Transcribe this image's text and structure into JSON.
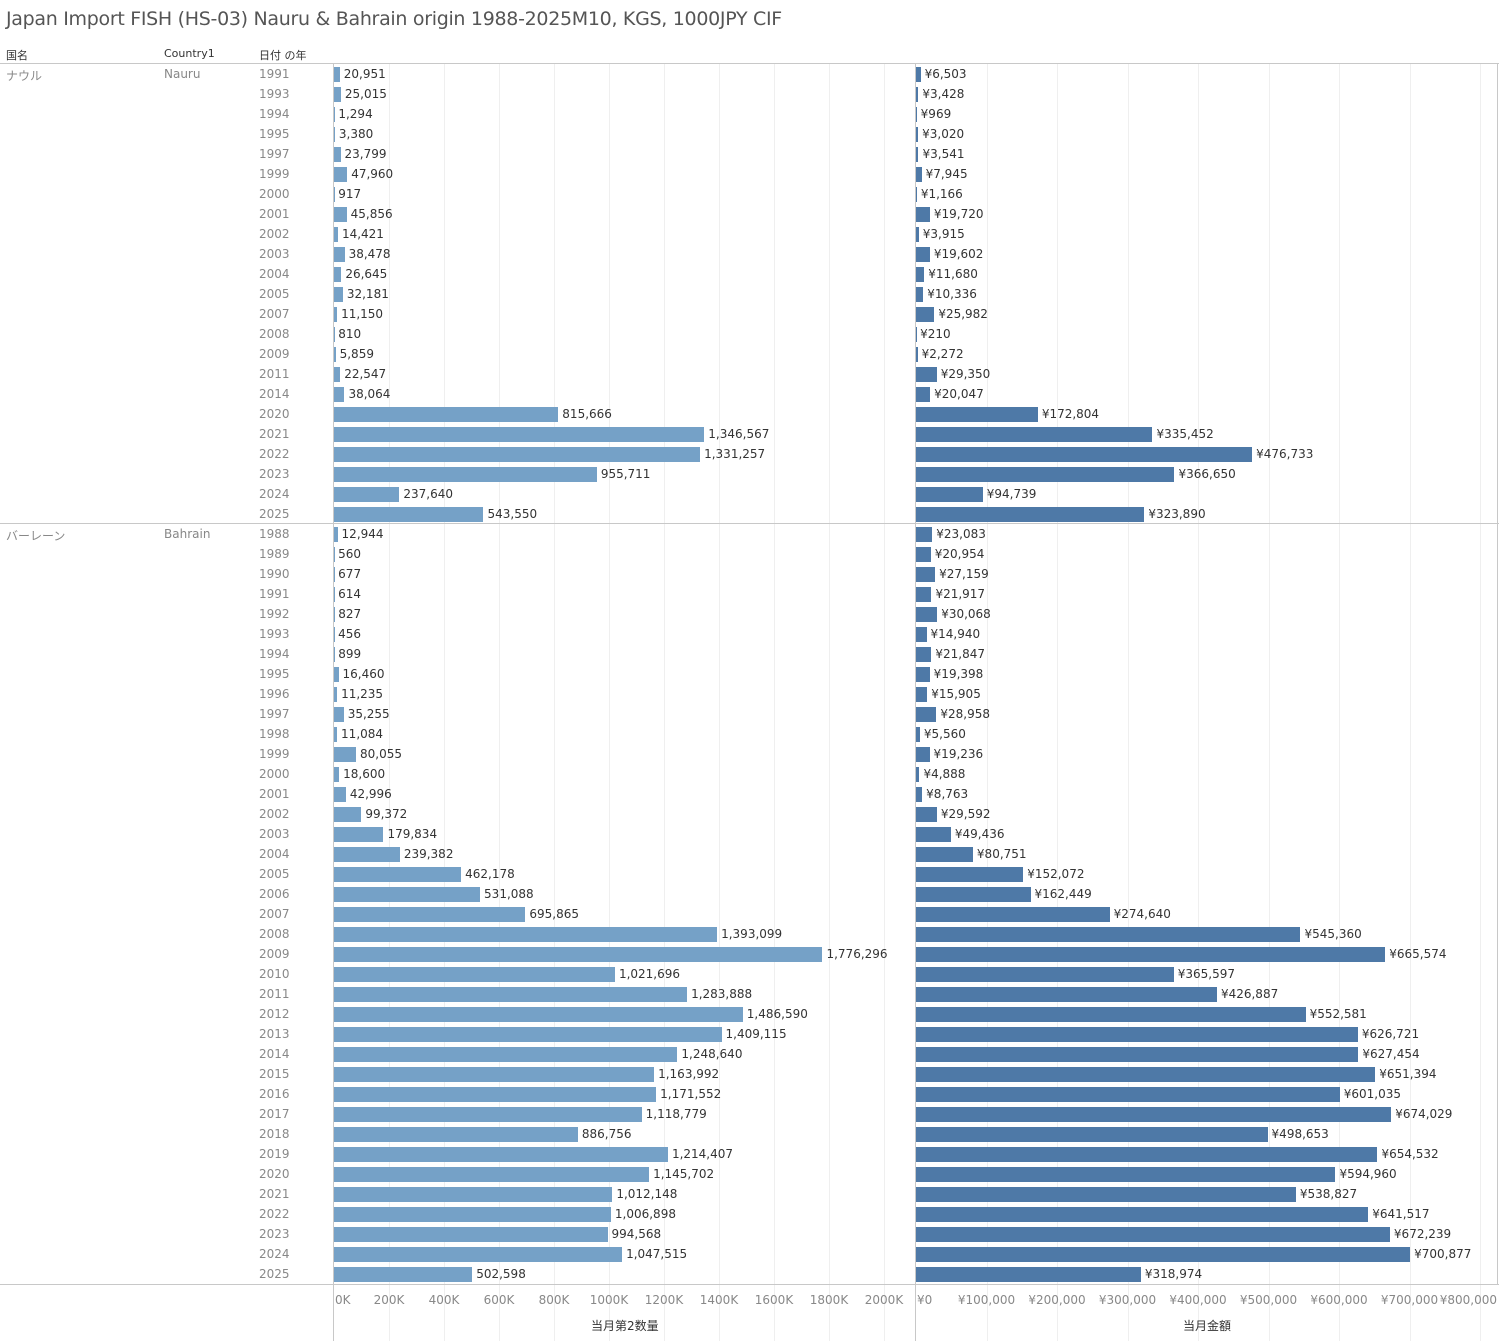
{
  "title": "Japan Import FISH (HS-03) Nauru & Bahrain origin 1988-2025M10, KGS, 1000JPY CIF",
  "headers": {
    "col1": "国名",
    "col2": "Country1",
    "col3": "日付 の年"
  },
  "colors": {
    "quantity_bar": "#75a1c7",
    "amount_bar": "#4e79a7"
  },
  "chart_data": {
    "type": "bar",
    "orientation": "horizontal",
    "title": "Japan Import FISH (HS-03) Nauru & Bahrain origin 1988-2025M10, KGS, 1000JPY CIF",
    "panels": [
      {
        "measure": "当月第2数量",
        "xlabel": "当月第2数量",
        "xlim": [
          0,
          2100000
        ],
        "ticks": [
          "0K",
          "200K",
          "400K",
          "600K",
          "800K",
          "1000K",
          "1200K",
          "1400K",
          "1600K",
          "1800K",
          "2000K"
        ],
        "tick_values": [
          0,
          200000,
          400000,
          600000,
          800000,
          1000000,
          1200000,
          1400000,
          1600000,
          1800000,
          2000000
        ]
      },
      {
        "measure": "当月金額",
        "xlabel": "当月金額",
        "xlim": [
          0,
          826000
        ],
        "ticks": [
          "¥0",
          "¥100,000",
          "¥200,000",
          "¥300,000",
          "¥400,000",
          "¥500,000",
          "¥600,000",
          "¥700,000",
          "¥800,000"
        ],
        "tick_values": [
          0,
          100000,
          200000,
          300000,
          400000,
          500000,
          600000,
          700000,
          800000
        ]
      }
    ],
    "groups": [
      {
        "name_jp": "ナウル",
        "name_en": "Nauru",
        "rows": [
          {
            "year": "1991",
            "qty": 20951,
            "amt": 6503
          },
          {
            "year": "1993",
            "qty": 25015,
            "amt": 3428
          },
          {
            "year": "1994",
            "qty": 1294,
            "amt": 969
          },
          {
            "year": "1995",
            "qty": 3380,
            "amt": 3020
          },
          {
            "year": "1997",
            "qty": 23799,
            "amt": 3541
          },
          {
            "year": "1999",
            "qty": 47960,
            "amt": 7945
          },
          {
            "year": "2000",
            "qty": 917,
            "amt": 1166
          },
          {
            "year": "2001",
            "qty": 45856,
            "amt": 19720
          },
          {
            "year": "2002",
            "qty": 14421,
            "amt": 3915
          },
          {
            "year": "2003",
            "qty": 38478,
            "amt": 19602
          },
          {
            "year": "2004",
            "qty": 26645,
            "amt": 11680
          },
          {
            "year": "2005",
            "qty": 32181,
            "amt": 10336
          },
          {
            "year": "2007",
            "qty": 11150,
            "amt": 25982
          },
          {
            "year": "2008",
            "qty": 810,
            "amt": 210
          },
          {
            "year": "2009",
            "qty": 5859,
            "amt": 2272
          },
          {
            "year": "2011",
            "qty": 22547,
            "amt": 29350
          },
          {
            "year": "2014",
            "qty": 38064,
            "amt": 20047
          },
          {
            "year": "2020",
            "qty": 815666,
            "amt": 172804
          },
          {
            "year": "2021",
            "qty": 1346567,
            "amt": 335452
          },
          {
            "year": "2022",
            "qty": 1331257,
            "amt": 476733
          },
          {
            "year": "2023",
            "qty": 955711,
            "amt": 366650
          },
          {
            "year": "2024",
            "qty": 237640,
            "amt": 94739
          },
          {
            "year": "2025",
            "qty": 543550,
            "amt": 323890
          }
        ]
      },
      {
        "name_jp": "バーレーン",
        "name_en": "Bahrain",
        "rows": [
          {
            "year": "1988",
            "qty": 12944,
            "amt": 23083
          },
          {
            "year": "1989",
            "qty": 560,
            "amt": 20954
          },
          {
            "year": "1990",
            "qty": 677,
            "amt": 27159
          },
          {
            "year": "1991",
            "qty": 614,
            "amt": 21917
          },
          {
            "year": "1992",
            "qty": 827,
            "amt": 30068
          },
          {
            "year": "1993",
            "qty": 456,
            "amt": 14940
          },
          {
            "year": "1994",
            "qty": 899,
            "amt": 21847
          },
          {
            "year": "1995",
            "qty": 16460,
            "amt": 19398
          },
          {
            "year": "1996",
            "qty": 11235,
            "amt": 15905
          },
          {
            "year": "1997",
            "qty": 35255,
            "amt": 28958
          },
          {
            "year": "1998",
            "qty": 11084,
            "amt": 5560
          },
          {
            "year": "1999",
            "qty": 80055,
            "amt": 19236
          },
          {
            "year": "2000",
            "qty": 18600,
            "amt": 4888
          },
          {
            "year": "2001",
            "qty": 42996,
            "amt": 8763
          },
          {
            "year": "2002",
            "qty": 99372,
            "amt": 29592
          },
          {
            "year": "2003",
            "qty": 179834,
            "amt": 49436
          },
          {
            "year": "2004",
            "qty": 239382,
            "amt": 80751
          },
          {
            "year": "2005",
            "qty": 462178,
            "amt": 152072
          },
          {
            "year": "2006",
            "qty": 531088,
            "amt": 162449
          },
          {
            "year": "2007",
            "qty": 695865,
            "amt": 274640
          },
          {
            "year": "2008",
            "qty": 1393099,
            "amt": 545360
          },
          {
            "year": "2009",
            "qty": 1776296,
            "amt": 665574
          },
          {
            "year": "2010",
            "qty": 1021696,
            "amt": 365597
          },
          {
            "year": "2011",
            "qty": 1283888,
            "amt": 426887
          },
          {
            "year": "2012",
            "qty": 1486590,
            "amt": 552581
          },
          {
            "year": "2013",
            "qty": 1409115,
            "amt": 626721
          },
          {
            "year": "2014",
            "qty": 1248640,
            "amt": 627454
          },
          {
            "year": "2015",
            "qty": 1163992,
            "amt": 651394
          },
          {
            "year": "2016",
            "qty": 1171552,
            "amt": 601035
          },
          {
            "year": "2017",
            "qty": 1118779,
            "amt": 674029
          },
          {
            "year": "2018",
            "qty": 886756,
            "amt": 498653
          },
          {
            "year": "2019",
            "qty": 1214407,
            "amt": 654532
          },
          {
            "year": "2020",
            "qty": 1145702,
            "amt": 594960
          },
          {
            "year": "2021",
            "qty": 1012148,
            "amt": 538827
          },
          {
            "year": "2022",
            "qty": 1006898,
            "amt": 641517
          },
          {
            "year": "2023",
            "qty": 994568,
            "amt": 672239
          },
          {
            "year": "2024",
            "qty": 1047515,
            "amt": 700877
          },
          {
            "year": "2025",
            "qty": 502598,
            "amt": 318974
          }
        ]
      }
    ],
    "grid": true,
    "legend": "none"
  }
}
